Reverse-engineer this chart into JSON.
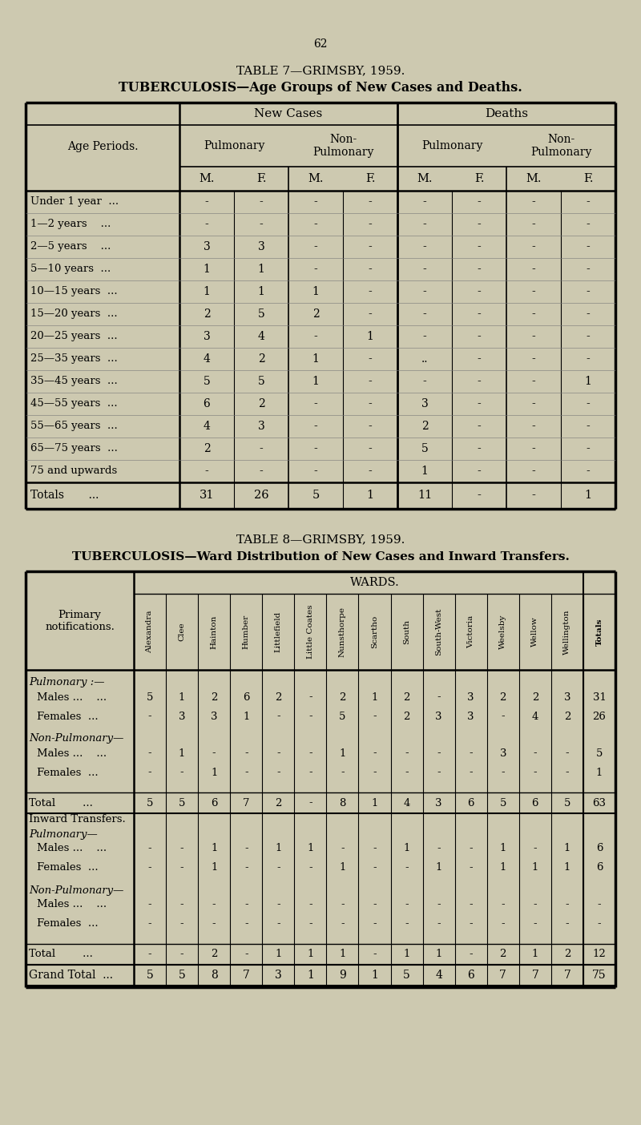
{
  "page_number": "62",
  "bg_color": "#ceca b4",
  "table7": {
    "title1": "TABLE 7—GRIMSBY, 1959.",
    "title2": "TUBERCULOSIS—Age Groups of New Cases and Deaths.",
    "mf_header": [
      "M.",
      "F.",
      "M.",
      "F.",
      "M.",
      "F.",
      "M.",
      "F."
    ],
    "row_label_col": "Age Periods.",
    "rows": [
      {
        "label": "Under 1 year  ...",
        "vals": [
          "-",
          "-",
          "-",
          "-",
          "-",
          "-",
          "-",
          "-"
        ]
      },
      {
        "label": "1—2 years    ...",
        "vals": [
          "-",
          "-",
          "-",
          "-",
          "-",
          "-",
          "-",
          "-"
        ]
      },
      {
        "label": "2—5 years    ...",
        "vals": [
          "3",
          "3",
          "-",
          "-",
          "-",
          "-",
          "-",
          "-"
        ]
      },
      {
        "label": "5—10 years  ...",
        "vals": [
          "1",
          "1",
          "-",
          "-",
          "-",
          "-",
          "-",
          "-"
        ]
      },
      {
        "label": "10—15 years  ...",
        "vals": [
          "1",
          "1",
          "1",
          "-",
          "-",
          "-",
          "-",
          "-"
        ]
      },
      {
        "label": "15—20 years  ...",
        "vals": [
          "2",
          "5",
          "2",
          "-",
          "-",
          "-",
          "-",
          "-"
        ]
      },
      {
        "label": "20—25 years  ...",
        "vals": [
          "3",
          "4",
          "-",
          "1",
          "-",
          "-",
          "-",
          "-"
        ]
      },
      {
        "label": "25—35 years  ...",
        "vals": [
          "4",
          "2",
          "1",
          "-",
          "..",
          "-",
          "-",
          "-"
        ]
      },
      {
        "label": "35—45 years  ...",
        "vals": [
          "5",
          "5",
          "1",
          "-",
          "-",
          "-",
          "-",
          "1"
        ]
      },
      {
        "label": "45—55 years  ...",
        "vals": [
          "6",
          "2",
          "-",
          "-",
          "3",
          "-",
          "-",
          "-"
        ]
      },
      {
        "label": "55—65 years  ...",
        "vals": [
          "4",
          "3",
          "-",
          "-",
          "2",
          "-",
          "-",
          "-"
        ]
      },
      {
        "label": "65—75 years  ...",
        "vals": [
          "2",
          "-",
          "-",
          "-",
          "5",
          "-",
          "-",
          "-"
        ]
      },
      {
        "label": "75 and upwards",
        "vals": [
          "-",
          "-",
          "-",
          "-",
          "1",
          "-",
          "-",
          "-"
        ]
      }
    ],
    "totals_label": "Totals       ...",
    "totals": [
      "31",
      "26",
      "5",
      "1",
      "11",
      "-",
      "-",
      "1"
    ]
  },
  "table8": {
    "title1": "TABLE 8—GRIMSBY, 1959.",
    "title2": "TUBERCULOSIS—Ward Distribution of New Cases and Inward Transfers.",
    "wards_header": "WARDS.",
    "col_headers": [
      "Alexandra",
      "Clee",
      "Hainton",
      "Humber",
      "Littlefield",
      "Little Coates",
      "Nunsthorpe",
      "Scartho",
      "South",
      "South-West",
      "Victoria",
      "Weelsby",
      "Wellow",
      "Wellington",
      "Totals"
    ],
    "row_label_col": "Primary\nnotifications.",
    "prim_pulm_males": [
      "5",
      "1",
      "2",
      "6",
      "2",
      "-",
      "2",
      "1",
      "2",
      "-",
      "3",
      "2",
      "2",
      "3",
      "31"
    ],
    "prim_pulm_females": [
      "-",
      "3",
      "3",
      "1",
      "-",
      "-",
      "5",
      "-",
      "2",
      "3",
      "3",
      "-",
      "4",
      "2",
      "26"
    ],
    "prim_nonpulm_males": [
      "-",
      "1",
      "-",
      "-",
      "-",
      "-",
      "1",
      "-",
      "-",
      "-",
      "-",
      "3",
      "-",
      "-",
      "5"
    ],
    "prim_nonpulm_females": [
      "-",
      "-",
      "1",
      "-",
      "-",
      "-",
      "-",
      "-",
      "-",
      "-",
      "-",
      "-",
      "-",
      "-",
      "1"
    ],
    "total_row": [
      "5",
      "5",
      "6",
      "7",
      "2",
      "-",
      "8",
      "1",
      "4",
      "3",
      "6",
      "5",
      "6",
      "5",
      "63"
    ],
    "inw_pulm_males": [
      "-",
      "-",
      "1",
      "-",
      "1",
      "1",
      "-",
      "-",
      "1",
      "-",
      "-",
      "1",
      "-",
      "1",
      "6"
    ],
    "inw_pulm_females": [
      "-",
      "-",
      "1",
      "-",
      "-",
      "-",
      "1",
      "-",
      "-",
      "1",
      "-",
      "1",
      "1",
      "1",
      "6"
    ],
    "inw_nonpulm_males": [
      "-",
      "-",
      "-",
      "-",
      "-",
      "-",
      "-",
      "-",
      "-",
      "-",
      "-",
      "-",
      "-",
      "-",
      "-"
    ],
    "inw_nonpulm_females": [
      "-",
      "-",
      "-",
      "-",
      "-",
      "-",
      "-",
      "-",
      "-",
      "-",
      "-",
      "-",
      "-",
      "-",
      "-"
    ],
    "inward_total_row": [
      "-",
      "-",
      "2",
      "-",
      "1",
      "1",
      "1",
      "-",
      "1",
      "1",
      "-",
      "2",
      "1",
      "2",
      "12"
    ],
    "grand_total_row": [
      "5",
      "5",
      "8",
      "7",
      "3",
      "1",
      "9",
      "1",
      "5",
      "4",
      "6",
      "7",
      "7",
      "7",
      "75"
    ]
  }
}
